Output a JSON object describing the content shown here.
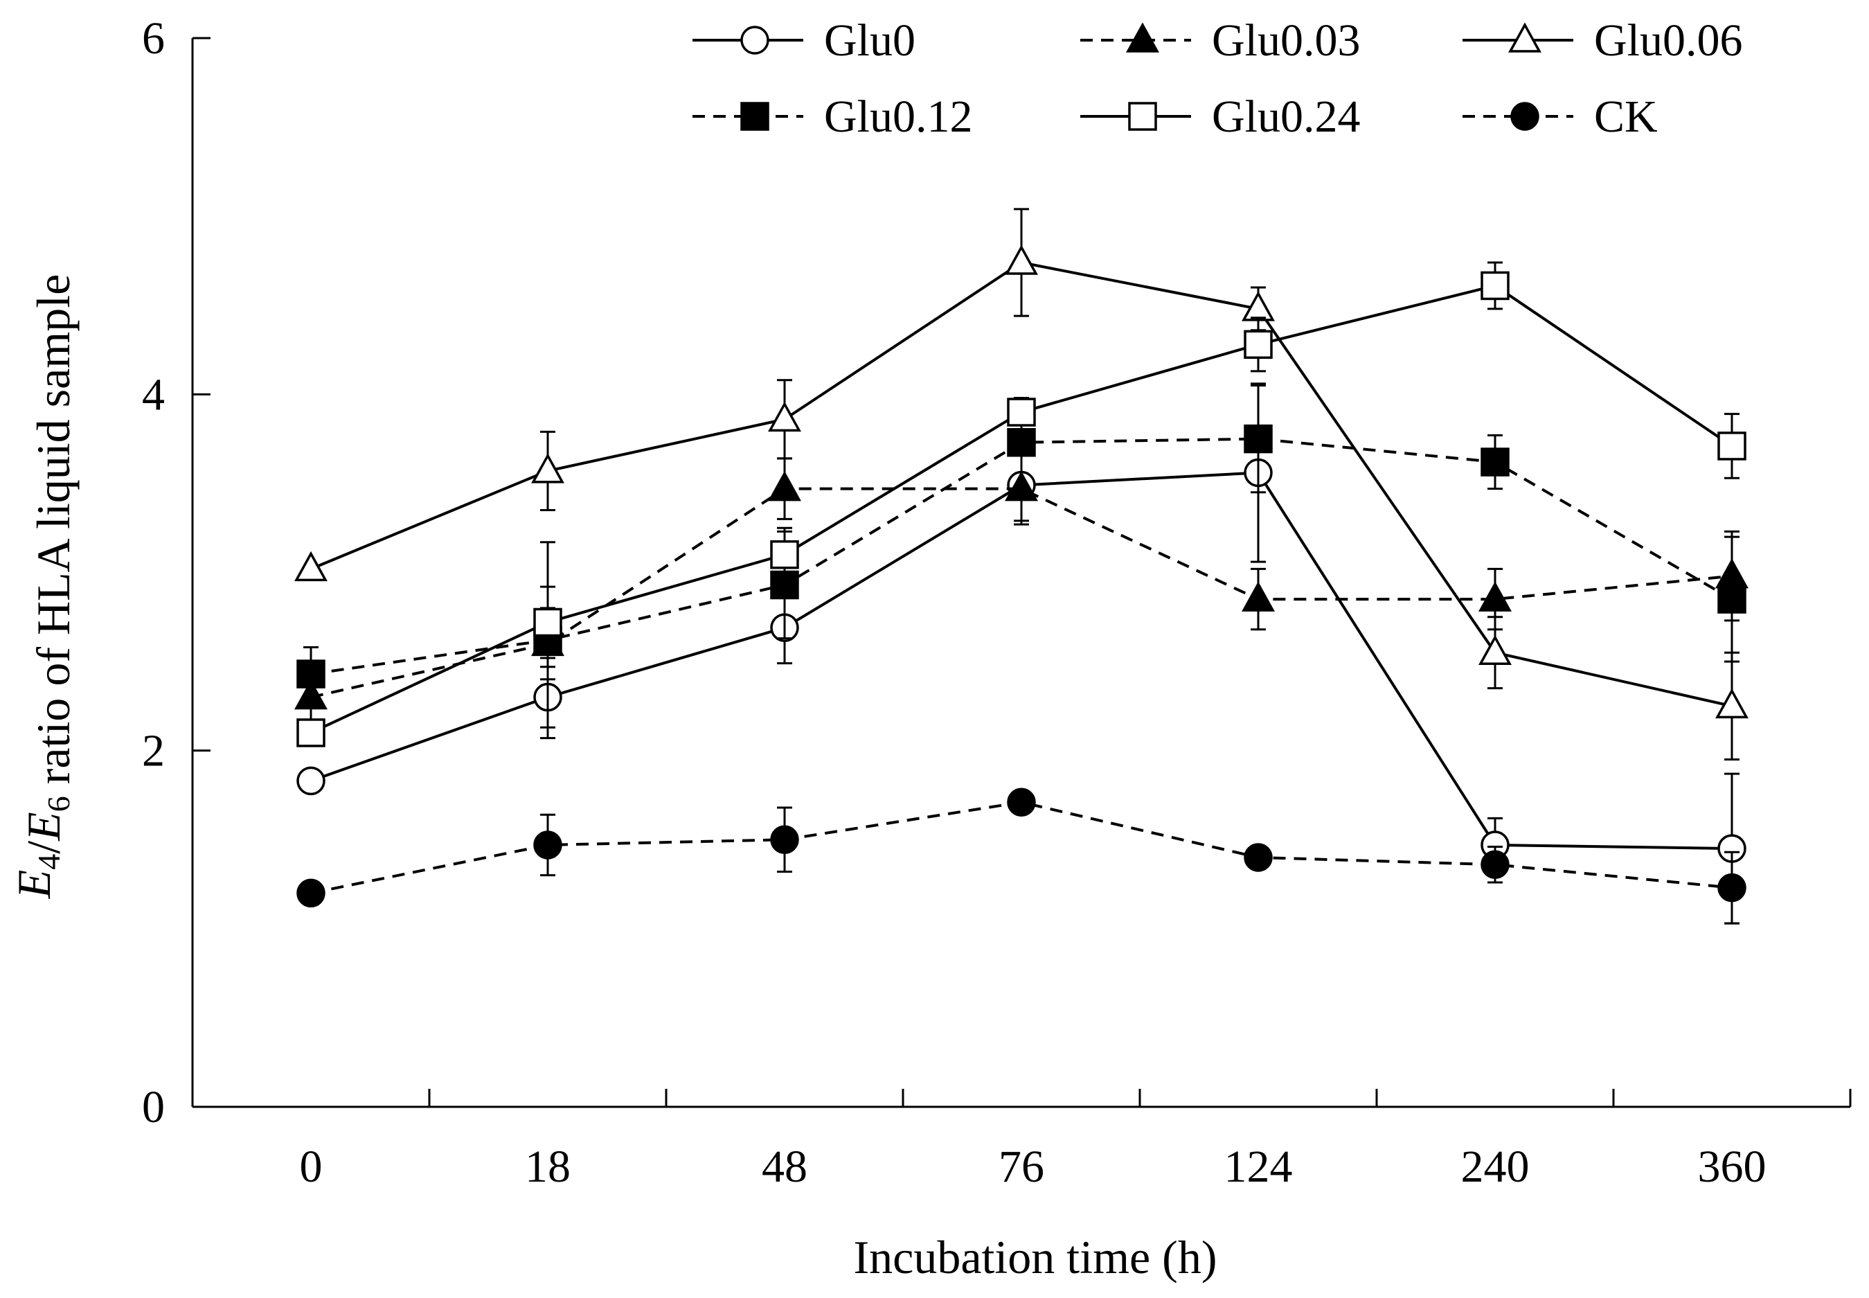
{
  "chart_data": {
    "type": "line",
    "xlabel": "Incubation time (h)",
    "ylabel": {
      "parts": [
        "E",
        "4",
        "/E",
        "6",
        " ratio of HLA liquid sample"
      ]
    },
    "categories": [
      "0",
      "18",
      "48",
      "76",
      "124",
      "240",
      "360"
    ],
    "ylim": [
      0,
      6
    ],
    "yticks": [
      "0",
      "2",
      "4",
      "6"
    ],
    "grid": false,
    "legend_position": "top",
    "series": [
      {
        "name": "Glu0",
        "line": "solid",
        "marker": "circle",
        "filled": false,
        "values": [
          1.83,
          2.3,
          2.69,
          3.49,
          3.56,
          1.47,
          1.45
        ],
        "errors": [
          0.0,
          0.17,
          0.2,
          0.2,
          0.5,
          0.15,
          0.42
        ]
      },
      {
        "name": "Glu0.03",
        "line": "dashed",
        "marker": "triangle",
        "filled": true,
        "values": [
          2.3,
          2.6,
          3.47,
          3.47,
          2.85,
          2.85,
          2.98
        ],
        "errors": [
          0.18,
          0.2,
          0.17,
          0.2,
          0.17,
          0.17,
          0.25
        ]
      },
      {
        "name": "Glu0.06",
        "line": "solid",
        "marker": "triangle",
        "filled": false,
        "values": [
          3.02,
          3.57,
          3.86,
          4.74,
          4.48,
          2.55,
          2.25
        ],
        "errors": [
          0.0,
          0.22,
          0.22,
          0.3,
          0.12,
          0.2,
          0.3
        ]
      },
      {
        "name": "Glu0.12",
        "line": "dashed",
        "marker": "square",
        "filled": true,
        "values": [
          2.43,
          2.62,
          2.93,
          3.73,
          3.75,
          3.62,
          2.85
        ],
        "errors": [
          0.15,
          0.55,
          0.3,
          0.25,
          0.3,
          0.15,
          0.35
        ]
      },
      {
        "name": "Glu0.24",
        "line": "solid",
        "marker": "square",
        "filled": false,
        "values": [
          2.1,
          2.72,
          3.1,
          3.9,
          4.28,
          4.61,
          3.71
        ],
        "errors": [
          0.0,
          0.2,
          0.15,
          0.0,
          0.15,
          0.13,
          0.18
        ]
      },
      {
        "name": "CK",
        "line": "dashed",
        "marker": "circle",
        "filled": true,
        "values": [
          1.2,
          1.47,
          1.5,
          1.71,
          1.4,
          1.36,
          1.23
        ],
        "errors": [
          0.0,
          0.17,
          0.18,
          0.0,
          0.0,
          0.1,
          0.2
        ]
      }
    ]
  }
}
